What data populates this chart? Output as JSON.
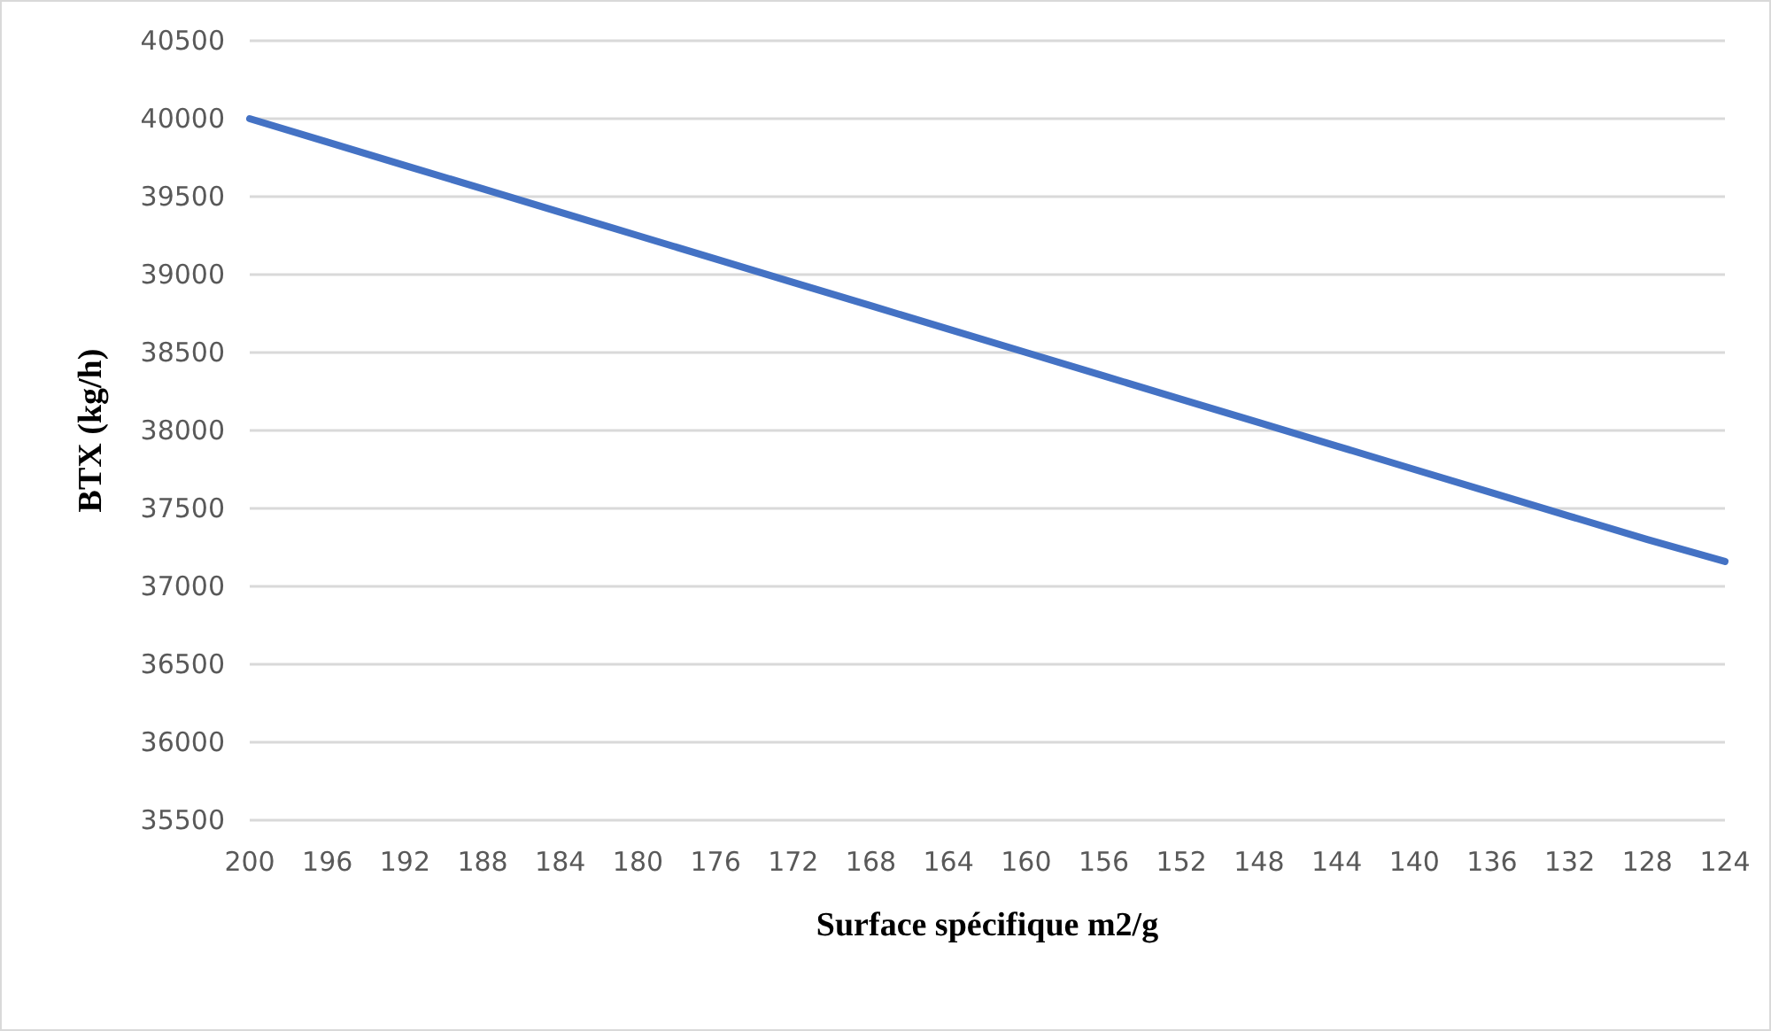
{
  "chart_data": {
    "type": "line",
    "xlabel": "Surface spécifique m2/g",
    "ylabel": "BTX (kg/h)",
    "categories": [
      "200",
      "196",
      "192",
      "188",
      "184",
      "180",
      "176",
      "172",
      "168",
      "164",
      "160",
      "156",
      "152",
      "148",
      "144",
      "140",
      "136",
      "132",
      "128",
      "124"
    ],
    "series": [
      {
        "color": "#4472c4",
        "values": [
          40000,
          39850,
          39700,
          39550,
          39400,
          39250,
          39100,
          38950,
          38800,
          38650,
          38500,
          38350,
          38200,
          38050,
          37900,
          37750,
          37600,
          37450,
          37300,
          37160
        ]
      }
    ],
    "ylim": [
      35500,
      40500
    ],
    "yticks": [
      35500,
      36000,
      36500,
      37000,
      37500,
      38000,
      38500,
      39000,
      39500,
      40000,
      40500
    ],
    "grid": "y",
    "marker": "none",
    "line_style": "solid"
  }
}
